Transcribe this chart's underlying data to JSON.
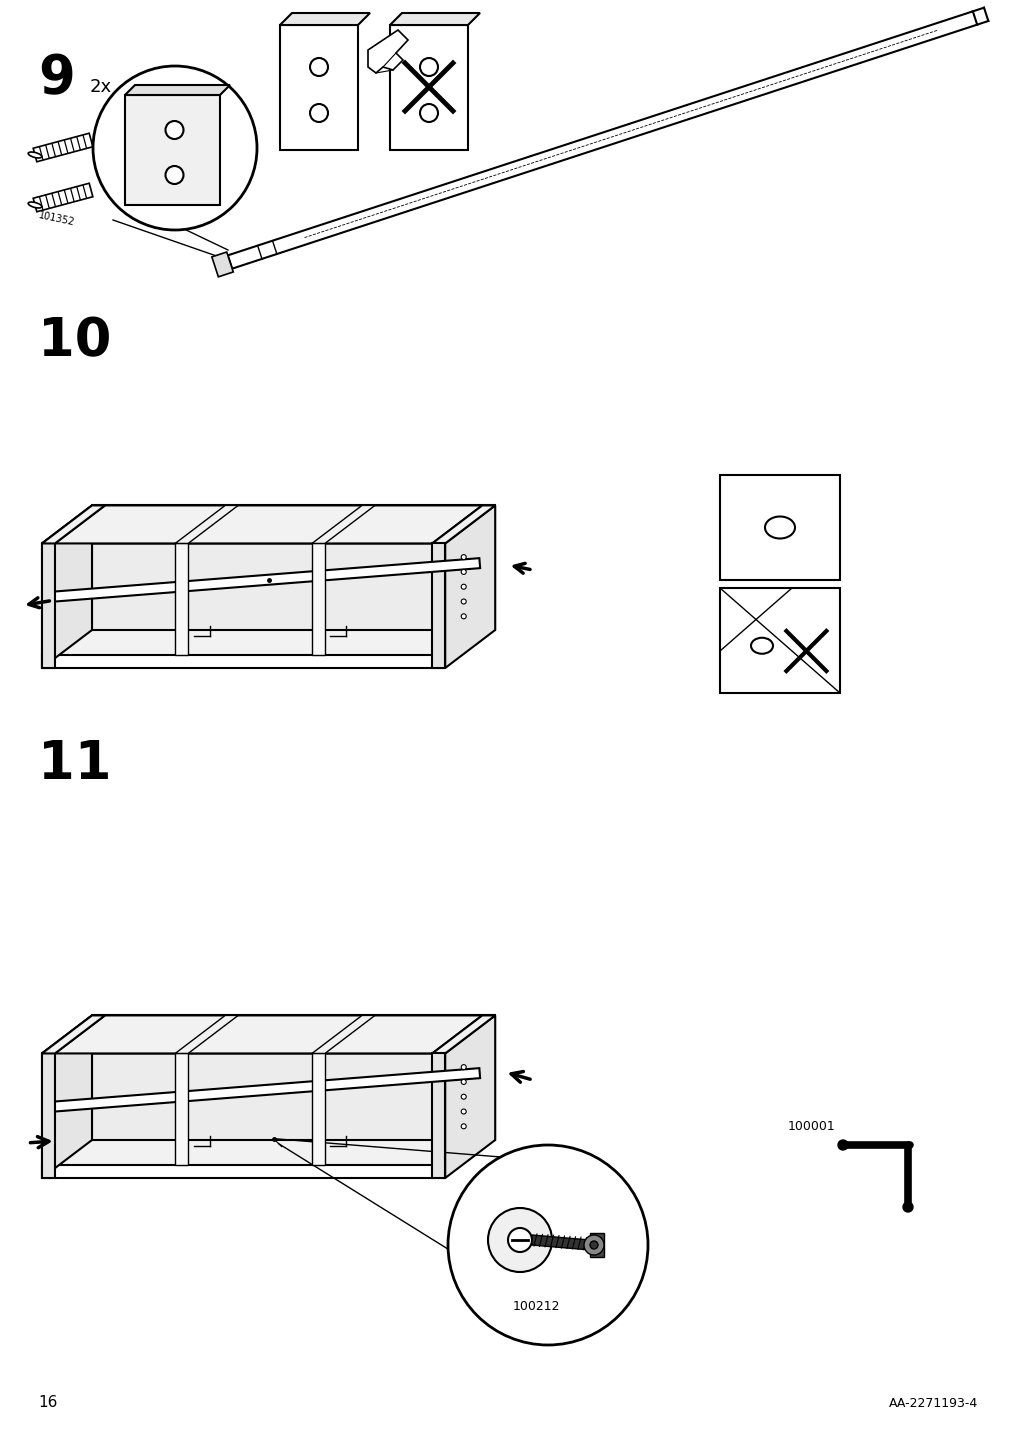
{
  "page_number": "16",
  "document_id": "AA-2271193-4",
  "background_color": "#ffffff",
  "line_color": "#000000",
  "fig_width": 10.12,
  "fig_height": 14.32,
  "step9_label": "9",
  "step10_label": "10",
  "step11_label": "11",
  "qty_label": "2x",
  "part_101352": "101352",
  "part_100001": "100001",
  "part_100212": "100212"
}
